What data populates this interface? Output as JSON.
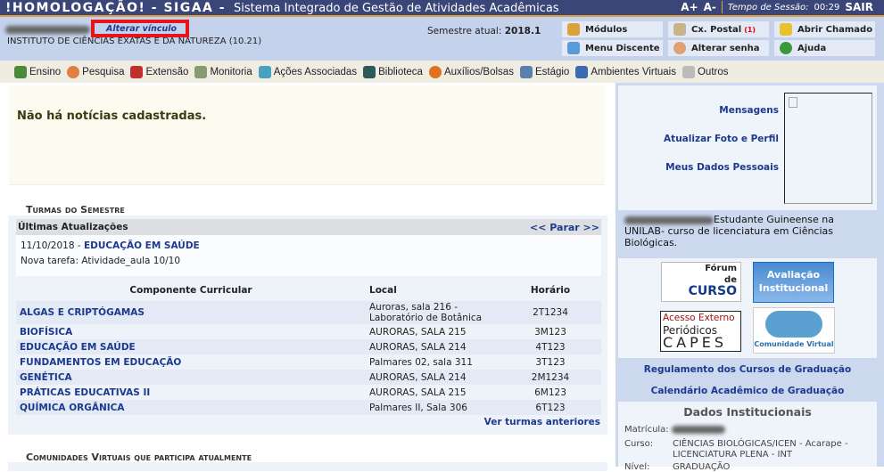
{
  "header": {
    "title": "!HOMOLOGAÇÃO! - SIGAA -",
    "subtitle": "Sistema Integrado de Gestão de Atividades Acadêmicas",
    "font_up": "A+",
    "font_down": "A-",
    "session_label": "Tempo de Sessão:",
    "session_time": "00:29",
    "logout": "SAIR"
  },
  "info": {
    "alterar_vinculo": "Alterar vínculo",
    "unit": "INSTITUTO DE CIÊNCIAS EXATAS E DA NATUREZA (10.21)",
    "semestre_label": "Semestre atual:",
    "semestre": "2018.1"
  },
  "quick": [
    {
      "label": "Módulos",
      "icon": "modules-icon"
    },
    {
      "label": "Cx. Postal",
      "badge": "(1)",
      "icon": "mailbox-icon"
    },
    {
      "label": "Abrir Chamado",
      "icon": "bell-icon"
    },
    {
      "label": "Menu Discente",
      "icon": "tree-icon"
    },
    {
      "label": "Alterar senha",
      "icon": "user-icon"
    },
    {
      "label": "Ajuda",
      "icon": "help-icon"
    }
  ],
  "menu": [
    "Ensino",
    "Pesquisa",
    "Extensão",
    "Monitoria",
    "Ações Associadas",
    "Biblioteca",
    "Auxílios/Bolsas",
    "Estágio",
    "Ambientes Virtuais",
    "Outros"
  ],
  "news": "Não há notícias cadastradas.",
  "turmas": {
    "title": "Turmas do Semestre",
    "updates_title": "Últimas Atualizações",
    "stop": "<< Parar >>",
    "update_date": "11/10/2018 -",
    "update_course": "EDUCAÇÃO EM SAÚDE",
    "update_text": "Nova tarefa: Atividade_aula 10/10",
    "headers": [
      "Componente Curricular",
      "Local",
      "Horário"
    ],
    "rows": [
      [
        "ALGAS E CRIPTÓGAMAS",
        "Auroras, sala 216 - Laboratório de Botânica",
        "2T1234"
      ],
      [
        "BIOFÍSICA",
        "AURORAS, SALA 215",
        "3M123"
      ],
      [
        "EDUCAÇÃO EM SAÚDE",
        "AURORAS, SALA 214",
        "4T123"
      ],
      [
        "FUNDAMENTOS EM EDUCAÇÃO",
        "Palmares 02, sala 311",
        "3T123"
      ],
      [
        "GENÉTICA",
        "AURORAS, SALA 214",
        "2M1234"
      ],
      [
        "PRÁTICAS EDUCATIVAS II",
        "AURORAS, SALA 215",
        "6M123"
      ],
      [
        "QUÍMICA ORGÂNICA",
        "Palmares II, Sala 306",
        "6T123"
      ]
    ],
    "previous": "Ver turmas anteriores"
  },
  "comunidades": {
    "title": "Comunidades Virtuais que participa atualmente"
  },
  "profile": {
    "links": [
      "Mensagens",
      "Atualizar Foto e Perfil",
      "Meus Dados Pessoais"
    ],
    "bio": "Estudante Guineense na UNILAB- curso de licenciatura em Ciências Biológicas."
  },
  "banners": {
    "forum": [
      "Fórum",
      "de",
      "CURSO"
    ],
    "avaliacao": [
      "Avaliação",
      "Institucional"
    ],
    "capes": [
      "Acesso Externo",
      "Periódicos",
      "CAPES"
    ],
    "comunidade": "Comunidade Virtual"
  },
  "links": [
    "Regulamento dos Cursos de Graduação",
    "Calendário Acadêmico de Graduação"
  ],
  "dados": {
    "title": "Dados Institucionais",
    "matricula_label": "Matrícula:",
    "curso_label": "Curso:",
    "curso": "CIÊNCIAS BIOLÓGICAS/ICEN - Acarape - LICENCIATURA PLENA - INT",
    "nivel_label": "Nível:",
    "nivel": "GRADUAÇÃO"
  }
}
